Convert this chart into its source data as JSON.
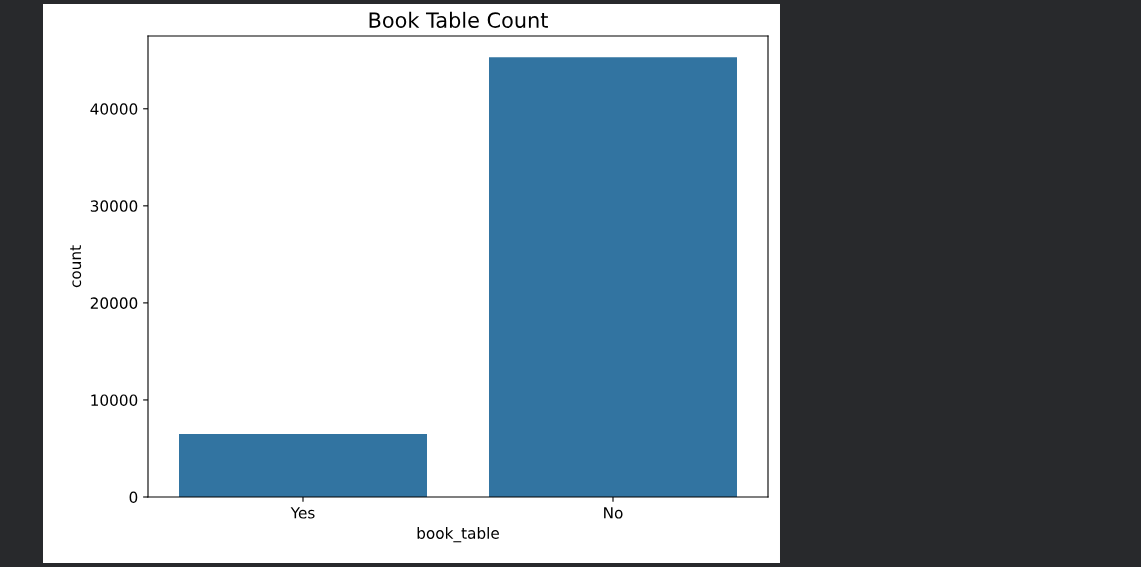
{
  "chart_data": {
    "type": "bar",
    "title": "Book Table Count",
    "xlabel": "book_table",
    "ylabel": "count",
    "categories": [
      "Yes",
      "No"
    ],
    "values": [
      6500,
      45300
    ],
    "color": "#3274a1",
    "ylim": [
      0,
      47500
    ],
    "yticks": [
      0,
      10000,
      20000,
      30000,
      40000
    ],
    "grid": false,
    "legend": false
  }
}
